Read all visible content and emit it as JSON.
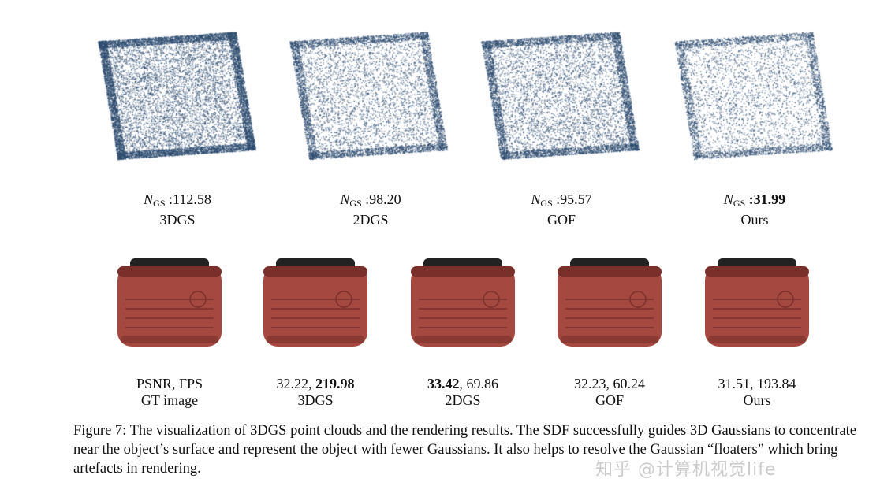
{
  "point_clouds": [
    {
      "method": "3DGS",
      "ngs_label": "N",
      "ngs_sub": "GS",
      "ngs_value": ":112.58",
      "bold": false,
      "density": 0.95
    },
    {
      "method": "2DGS",
      "ngs_label": "N",
      "ngs_sub": "GS",
      "ngs_value": ":98.20",
      "bold": false,
      "density": 0.55
    },
    {
      "method": "GOF",
      "ngs_label": "N",
      "ngs_sub": "GS",
      "ngs_value": ":95.57",
      "bold": false,
      "density": 0.65
    },
    {
      "method": "Ours",
      "ngs_label": "N",
      "ngs_sub": "GS",
      "ngs_value": ":31.99",
      "bold": true,
      "density": 0.4
    }
  ],
  "renders": [
    {
      "metric_a": "PSNR",
      "sep": ", ",
      "metric_b": "FPS",
      "name": "GT image",
      "bold_a": false,
      "bold_b": false
    },
    {
      "metric_a": "32.22",
      "sep": ", ",
      "metric_b": "219.98",
      "name": "3DGS",
      "bold_a": false,
      "bold_b": true
    },
    {
      "metric_a": "33.42",
      "sep": ", ",
      "metric_b": "69.86",
      "name": "2DGS",
      "bold_a": true,
      "bold_b": false
    },
    {
      "metric_a": "32.23",
      "sep": ", ",
      "metric_b": "60.24",
      "name": "GOF",
      "bold_a": false,
      "bold_b": false
    },
    {
      "metric_a": "31.51",
      "sep": ", ",
      "metric_b": "193.84",
      "name": "Ours",
      "bold_a": false,
      "bold_b": false
    }
  ],
  "caption": "Figure 7: The visualization of 3DGS point clouds and the rendering results. The SDF successfully guides 3D Gaussians to concentrate near the object’s surface and represent the object with fewer Gaussians. It also helps to resolve the Gaussian “floaters” which bring artefacts in rendering.",
  "watermark": "知乎 @计算机视觉life",
  "colors": {
    "point": "#2b4a6e",
    "suitcase": "#a5483f",
    "handle": "#222222"
  }
}
